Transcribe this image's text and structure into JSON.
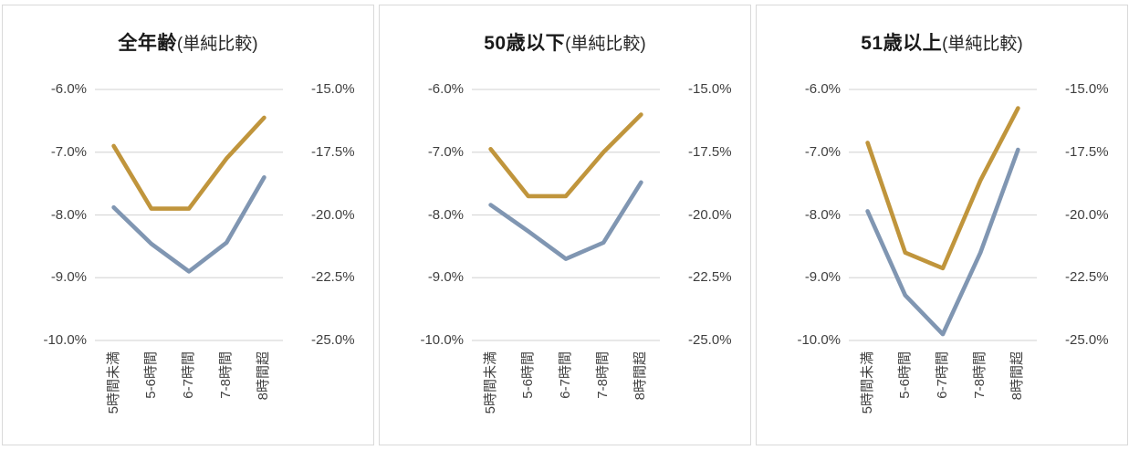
{
  "styles": {
    "background": "#FFFFFF",
    "panel_border_color": "#D9D9D9",
    "grid_color": "#D9D9D9",
    "axis_text_color": "#404040",
    "title_color": "#1A1A1A",
    "gold_color": "#C0953C",
    "blue_gray_color": "#8096B2"
  },
  "chart_data": [
    {
      "type": "line",
      "title_main": "全年齢",
      "title_suffix": "(単純比較)",
      "categories": [
        "5時間未満",
        "5-6時間",
        "6-7時間",
        "7-8時間",
        "8時間超"
      ],
      "left_axis": {
        "tick_labels": [
          "-6.0%",
          "-7.0%",
          "-8.0%",
          "-9.0%",
          "-10.0%"
        ],
        "tick_values": [
          -6,
          -7,
          -8,
          -9,
          -10
        ],
        "range": [
          -10,
          -6
        ]
      },
      "right_axis": {
        "tick_labels": [
          "-15.0%",
          "-17.5%",
          "-20.0%",
          "-22.5%",
          "-25.0%"
        ],
        "tick_values": [
          -15,
          -17.5,
          -20,
          -22.5,
          -25
        ],
        "range": [
          -25,
          -15
        ]
      },
      "series": [
        {
          "name": "gold",
          "axis": "left",
          "color": "#C0953C",
          "values": [
            -6.9,
            -7.9,
            -7.9,
            -7.1,
            -6.45
          ]
        },
        {
          "name": "blue-gray",
          "axis": "right",
          "color": "#8096B2",
          "values": [
            -19.7,
            -21.15,
            -22.25,
            -21.1,
            -18.5
          ]
        }
      ],
      "grid": true,
      "legend": "none"
    },
    {
      "type": "line",
      "title_main": "50歳以下",
      "title_suffix": "(単純比較)",
      "categories": [
        "5時間未満",
        "5-6時間",
        "6-7時間",
        "7-8時間",
        "8時間超"
      ],
      "left_axis": {
        "tick_labels": [
          "-6.0%",
          "-7.0%",
          "-8.0%",
          "-9.0%",
          "-10.0%"
        ],
        "tick_values": [
          -6,
          -7,
          -8,
          -9,
          -10
        ],
        "range": [
          -10,
          -6
        ]
      },
      "right_axis": {
        "tick_labels": [
          "-15.0%",
          "-17.5%",
          "-20.0%",
          "-22.5%",
          "-25.0%"
        ],
        "tick_values": [
          -15,
          -17.5,
          -20,
          -22.5,
          -25
        ],
        "range": [
          -25,
          -15
        ]
      },
      "series": [
        {
          "name": "gold",
          "axis": "left",
          "color": "#C0953C",
          "values": [
            -6.95,
            -7.7,
            -7.7,
            -7.0,
            -6.4
          ]
        },
        {
          "name": "blue-gray",
          "axis": "right",
          "color": "#8096B2",
          "values": [
            -19.6,
            -20.65,
            -21.75,
            -21.1,
            -18.7
          ]
        }
      ],
      "grid": true,
      "legend": "none"
    },
    {
      "type": "line",
      "title_main": "51歳以上",
      "title_suffix": "(単純比較)",
      "categories": [
        "5時間未満",
        "5-6時間",
        "6-7時間",
        "7-8時間",
        "8時間超"
      ],
      "left_axis": {
        "tick_labels": [
          "-6.0%",
          "-7.0%",
          "-8.0%",
          "-9.0%",
          "-10.0%"
        ],
        "tick_values": [
          -6,
          -7,
          -8,
          -9,
          -10
        ],
        "range": [
          -10,
          -6
        ]
      },
      "right_axis": {
        "tick_labels": [
          "-15.0%",
          "-17.5%",
          "-20.0%",
          "-22.5%",
          "-25.0%"
        ],
        "tick_values": [
          -15,
          -17.5,
          -20,
          -22.5,
          -25
        ],
        "range": [
          -25,
          -15
        ]
      },
      "series": [
        {
          "name": "gold",
          "axis": "left",
          "color": "#C0953C",
          "values": [
            -6.85,
            -8.6,
            -8.85,
            -7.45,
            -6.3
          ]
        },
        {
          "name": "blue-gray",
          "axis": "right",
          "color": "#8096B2",
          "values": [
            -19.85,
            -23.2,
            -24.75,
            -21.5,
            -17.4
          ]
        }
      ],
      "grid": true,
      "legend": "none"
    }
  ]
}
